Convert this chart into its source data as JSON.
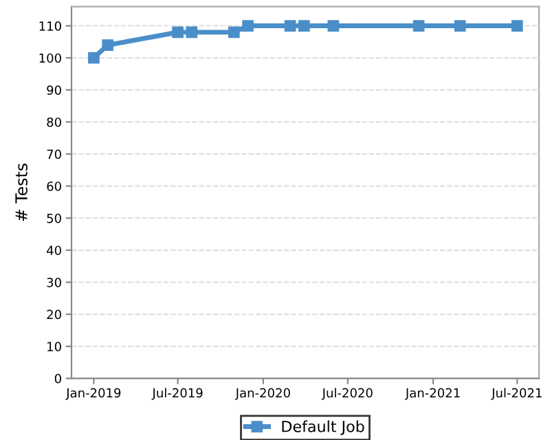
{
  "chart_data": {
    "type": "line",
    "ylabel": "# Tests",
    "x": [
      "2019-01-01",
      "2019-01-31",
      "2019-07-01",
      "2019-07-31",
      "2019-10-30",
      "2019-11-29",
      "2020-02-28",
      "2020-03-29",
      "2020-05-31",
      "2020-12-01",
      "2021-02-28",
      "2021-07-01"
    ],
    "series": [
      {
        "name": "Default Job",
        "color": "#4a8ec9",
        "values": [
          100,
          104,
          108,
          108,
          108,
          110,
          110,
          110,
          110,
          110,
          110,
          110
        ]
      }
    ],
    "xlim": [
      "2018-11-14",
      "2021-08-17"
    ],
    "xticks": [
      {
        "value": "2019-01-01",
        "label": "Jan-2019"
      },
      {
        "value": "2019-07-01",
        "label": "Jul-2019"
      },
      {
        "value": "2020-01-01",
        "label": "Jan-2020"
      },
      {
        "value": "2020-07-01",
        "label": "Jul-2020"
      },
      {
        "value": "2021-01-01",
        "label": "Jan-2021"
      },
      {
        "value": "2021-07-01",
        "label": "Jul-2021"
      }
    ],
    "ylim": [
      0,
      116
    ],
    "yticks": [
      0,
      10,
      20,
      30,
      40,
      50,
      60,
      70,
      80,
      90,
      100,
      110
    ],
    "grid": "y",
    "legend": "bottom",
    "marker": "square",
    "line_style": "solid"
  }
}
